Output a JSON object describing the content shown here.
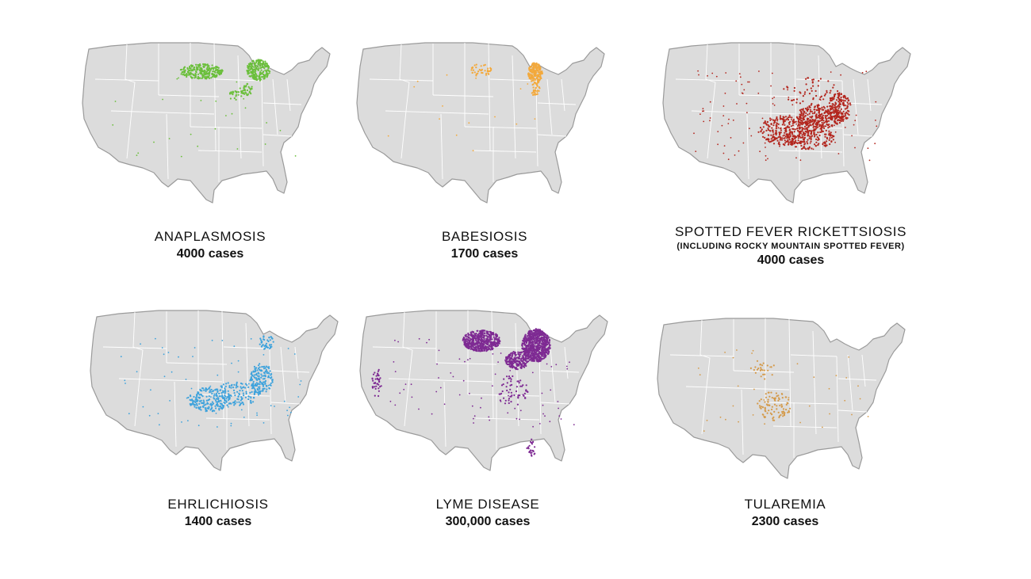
{
  "panels": [
    {
      "title": "ANAPLASMOSIS",
      "subtitle": "",
      "cases": "4000 cases",
      "color": "#6abf3a",
      "icon": "us-map-icon",
      "hotspots": [
        [
          0.48,
          0.16,
          0.09,
          0.05,
          260
        ],
        [
          0.72,
          0.15,
          0.05,
          0.07,
          230
        ],
        [
          0.67,
          0.28,
          0.03,
          0.04,
          40
        ],
        [
          0.62,
          0.32,
          0.03,
          0.03,
          20
        ]
      ],
      "sparse": 25
    },
    {
      "title": "BABESIOSIS",
      "subtitle": "",
      "cases": "1700 cases",
      "color": "#f3a93c",
      "icon": "us-map-icon",
      "hotspots": [
        [
          0.5,
          0.15,
          0.05,
          0.04,
          40
        ],
        [
          0.73,
          0.17,
          0.03,
          0.07,
          200
        ],
        [
          0.73,
          0.28,
          0.02,
          0.04,
          30
        ]
      ],
      "sparse": 15
    },
    {
      "title": "SPOTTED FEVER RICKETTSIOSIS",
      "subtitle": "(INCLUDING ROCKY MOUNTAIN SPOTTED FEVER)",
      "cases": "4000 cases",
      "color": "#b3261e",
      "icon": "us-map-icon",
      "hotspots": [
        [
          0.5,
          0.55,
          0.12,
          0.1,
          300
        ],
        [
          0.64,
          0.46,
          0.1,
          0.08,
          300
        ],
        [
          0.72,
          0.4,
          0.05,
          0.1,
          160
        ],
        [
          0.6,
          0.6,
          0.1,
          0.08,
          140
        ],
        [
          0.6,
          0.3,
          0.12,
          0.1,
          60
        ]
      ],
      "sparse": 110
    },
    {
      "title": "EHRLICHIOSIS",
      "subtitle": "",
      "cases": "1400 cases",
      "color": "#3da2dc",
      "icon": "us-map-icon",
      "hotspots": [
        [
          0.48,
          0.56,
          0.09,
          0.08,
          200
        ],
        [
          0.7,
          0.42,
          0.05,
          0.1,
          150
        ],
        [
          0.6,
          0.52,
          0.1,
          0.08,
          120
        ],
        [
          0.72,
          0.18,
          0.03,
          0.05,
          40
        ]
      ],
      "sparse": 70
    },
    {
      "title": "LYME DISEASE",
      "subtitle": "300,000 cases",
      "cases": "300,000 cases",
      "color": "#7e2a93",
      "icon": "us-map-icon",
      "hotspots": [
        [
          0.49,
          0.17,
          0.08,
          0.07,
          500
        ],
        [
          0.72,
          0.2,
          0.06,
          0.11,
          700
        ],
        [
          0.64,
          0.3,
          0.05,
          0.06,
          200
        ],
        [
          0.62,
          0.5,
          0.07,
          0.1,
          60
        ],
        [
          0.7,
          0.88,
          0.02,
          0.06,
          25
        ],
        [
          0.05,
          0.45,
          0.02,
          0.1,
          40
        ]
      ],
      "sparse": 80
    },
    {
      "title": "TULAREMIA",
      "subtitle": "",
      "cases": "2300 cases",
      "color": "#d49a4a",
      "icon": "us-map-icon",
      "hotspots": [
        [
          0.47,
          0.55,
          0.07,
          0.1,
          90
        ],
        [
          0.42,
          0.3,
          0.06,
          0.08,
          25
        ]
      ],
      "sparse": 35
    }
  ]
}
